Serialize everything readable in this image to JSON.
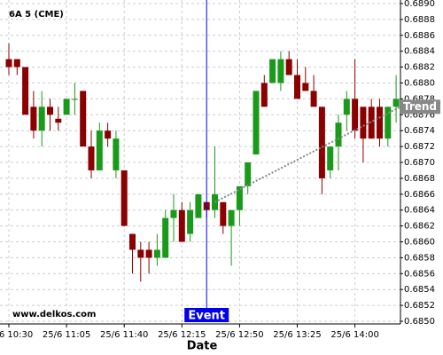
{
  "chart_data": {
    "type": "candlestick",
    "title": "6A 5 (CME)",
    "x_label": "Date",
    "watermark": "www.delkos.com",
    "categories": [
      "25/6 10:30",
      null,
      null,
      null,
      null,
      null,
      null,
      "25/6 11:05",
      null,
      null,
      null,
      null,
      null,
      null,
      "25/6 11:40",
      null,
      null,
      null,
      null,
      null,
      null,
      "25/6 12:15",
      null,
      null,
      null,
      null,
      null,
      null,
      "25/6 12:50",
      null,
      null,
      null,
      null,
      null,
      null,
      "25/6 13:25",
      null,
      null,
      null,
      null,
      null,
      null,
      "25/6 14:00",
      null,
      null,
      null,
      null,
      null
    ],
    "open": [
      0.6883,
      0.6883,
      0.6882,
      0.6877,
      0.6874,
      0.6877,
      0.68755,
      0.6876,
      0.6878,
      0.6879,
      0.6872,
      0.6869,
      0.6874,
      0.6869,
      0.6869,
      0.6861,
      0.6859,
      0.6859,
      0.6858,
      0.6858,
      0.6863,
      0.6864,
      0.6861,
      0.6863,
      0.6865,
      0.6864,
      0.6865,
      0.6862,
      0.6864,
      0.6867,
      0.6871,
      0.688,
      0.688,
      0.688,
      0.6883,
      0.6881,
      0.688,
      0.6879,
      0.6877,
      0.6869,
      0.6872,
      0.6876,
      0.6878,
      0.6877,
      0.6877,
      0.6877,
      0.6873,
      0.6877
    ],
    "high": [
      0.6885,
      0.6883,
      0.6882,
      0.6879,
      0.6879,
      0.6878,
      0.6877,
      0.6878,
      0.688,
      0.6879,
      0.6874,
      0.6875,
      0.6875,
      0.6874,
      0.6869,
      0.6861,
      0.686,
      0.686,
      0.6861,
      0.6864,
      0.6866,
      0.6865,
      0.6865,
      0.6866,
      0.6865,
      0.6872,
      0.6865,
      0.6864,
      0.6867,
      0.687,
      0.6879,
      0.6881,
      0.6883,
      0.6884,
      0.6884,
      0.6883,
      0.6882,
      0.6881,
      0.6877,
      0.6872,
      0.6876,
      0.6879,
      0.6883,
      0.6877,
      0.6878,
      0.6878,
      0.6877,
      0.6881
    ],
    "low": [
      0.6881,
      0.6881,
      0.6876,
      0.6873,
      0.6872,
      0.6874,
      0.6874,
      0.6876,
      0.6876,
      0.6872,
      0.6868,
      0.6869,
      0.6872,
      0.6868,
      0.6862,
      0.6856,
      0.6855,
      0.6856,
      0.6857,
      0.6858,
      0.686,
      0.686,
      0.686,
      0.6863,
      0.6863,
      0.6863,
      0.6861,
      0.6857,
      0.6862,
      0.6866,
      0.6871,
      0.6877,
      0.688,
      0.6879,
      0.6881,
      0.6878,
      0.6879,
      0.6877,
      0.6866,
      0.6868,
      0.6869,
      0.6874,
      0.6873,
      0.687,
      0.6873,
      0.6872,
      0.6872,
      0.6875
    ],
    "close": [
      0.6882,
      0.6882,
      0.6876,
      0.6874,
      0.6877,
      0.6876,
      0.6875,
      0.6878,
      0.6878,
      0.6872,
      0.6869,
      0.6874,
      0.6873,
      0.6873,
      0.6862,
      0.6859,
      0.6858,
      0.6858,
      0.6859,
      0.6863,
      0.6864,
      0.686,
      0.6864,
      0.6866,
      0.6864,
      0.6866,
      0.6862,
      0.6864,
      0.6867,
      0.687,
      0.6879,
      0.6877,
      0.6883,
      0.6883,
      0.6881,
      0.6878,
      0.6879,
      0.6877,
      0.6868,
      0.6872,
      0.6875,
      0.6878,
      0.6874,
      0.6873,
      0.6873,
      0.6873,
      0.6877,
      0.6878
    ],
    "up_color": "#1a9a1a",
    "down_color": "#8b0000",
    "ylim": [
      0.685,
      0.689
    ],
    "yticks": [
      {
        "value": 0.685,
        "label": "0.6850"
      },
      0.6852,
      0.6854,
      0.6856,
      0.6858,
      {
        "value": 0.686,
        "label": "0.6860"
      },
      0.6862,
      0.6864,
      0.6866,
      0.6868,
      {
        "value": 0.687,
        "label": "0.6870"
      },
      0.6872,
      0.6874,
      0.6876,
      0.6878,
      {
        "value": 0.688,
        "label": "0.6880"
      },
      0.6882,
      0.6884,
      0.6886,
      0.6888,
      {
        "value": 0.689,
        "label": "0.6890"
      }
    ],
    "grid": true,
    "event": {
      "label": "Event",
      "color": "#0000ee"
    },
    "trend": {
      "label": "Trend",
      "start": 0.6865,
      "end": 0.6877,
      "color": "#888888"
    }
  }
}
